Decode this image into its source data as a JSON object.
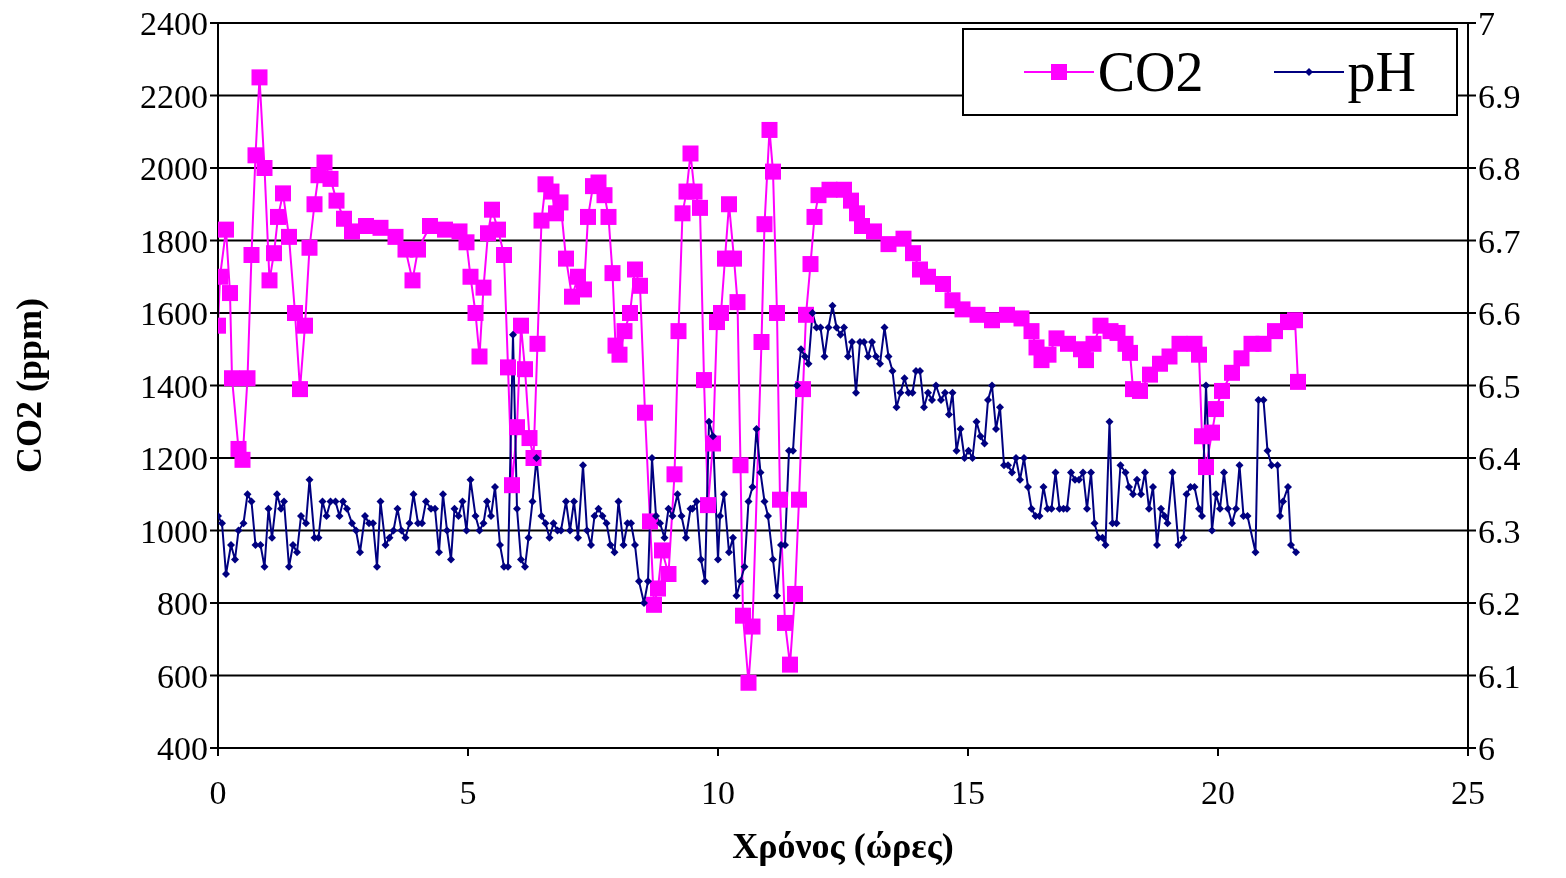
{
  "chart_data": {
    "type": "line",
    "xlabel": "Χρόνος (ώρες)",
    "ylabel": "CO2 (ppm)",
    "xlim": [
      0,
      25
    ],
    "xticks": [
      0,
      5,
      10,
      15,
      20,
      25
    ],
    "ylim": [
      400,
      2400
    ],
    "yticks": [
      400,
      600,
      800,
      1000,
      1200,
      1400,
      1600,
      1800,
      2000,
      2200,
      2400
    ],
    "y2lim": [
      6,
      7
    ],
    "y2ticks": [
      {
        "value": 6,
        "label": "6"
      },
      {
        "value": 6.1,
        "label": "6.1"
      },
      {
        "value": 6.2,
        "label": "6.2"
      },
      {
        "value": 6.3,
        "label": "6.3"
      },
      {
        "value": 6.4,
        "label": "6.4"
      },
      {
        "value": 6.5,
        "label": "6.5"
      },
      {
        "value": 6.6,
        "label": "6.6"
      },
      {
        "value": 6.7,
        "label": "6.7"
      },
      {
        "value": 6.8,
        "label": "6.8"
      },
      {
        "value": 6.9,
        "label": "6.9"
      },
      {
        "value": 7,
        "label": "7"
      }
    ],
    "grid": "y",
    "legend": "top right",
    "line_style": "solid",
    "series": [
      {
        "name": "CO2",
        "color": "#ff00ff",
        "marker": "square",
        "x": [
          0,
          0.04,
          0.16,
          0.24,
          0.28,
          0.41,
          0.49,
          0.59,
          0.67,
          0.75,
          0.83,
          0.93,
          1.03,
          1.12,
          1.2,
          1.3,
          1.42,
          1.54,
          1.64,
          1.74,
          1.83,
          1.93,
          2.01,
          2.13,
          2.25,
          2.37,
          2.52,
          2.68,
          2.96,
          3.25,
          3.55,
          3.75,
          3.89,
          4.0,
          4.24,
          4.54,
          4.83,
          4.97,
          5.05,
          5.15,
          5.23,
          5.31,
          5.4,
          5.48,
          5.6,
          5.72,
          5.8,
          5.88,
          5.98,
          6.06,
          6.14,
          6.23,
          6.31,
          6.39,
          6.47,
          6.55,
          6.67,
          6.76,
          6.85,
          6.96,
          7.08,
          7.2,
          7.32,
          7.4,
          7.5,
          7.61,
          7.73,
          7.81,
          7.89,
          7.95,
          8.03,
          8.13,
          8.24,
          8.34,
          8.44,
          8.54,
          8.64,
          8.72,
          8.8,
          8.88,
          9.01,
          9.13,
          9.21,
          9.29,
          9.37,
          9.45,
          9.53,
          9.64,
          9.72,
          9.8,
          9.9,
          9.98,
          10.06,
          10.14,
          10.22,
          10.32,
          10.39,
          10.45,
          10.5,
          10.61,
          10.69,
          10.87,
          10.93,
          11.03,
          11.1,
          11.18,
          11.24,
          11.34,
          11.44,
          11.54,
          11.62,
          11.7,
          11.76,
          11.85,
          11.93,
          12.01,
          12.23,
          12.52,
          12.66,
          12.78,
          12.88,
          13.12,
          13.41,
          13.71,
          13.9,
          14.04,
          14.2,
          14.5,
          14.69,
          14.89,
          15.19,
          15.48,
          15.78,
          16.07,
          16.27,
          16.37,
          16.47,
          16.61,
          16.77,
          17.0,
          17.26,
          17.36,
          17.51,
          17.65,
          17.85,
          17.99,
          18.15,
          18.24,
          18.3,
          18.44,
          18.64,
          18.84,
          19.03,
          19.23,
          19.53,
          19.62,
          19.68,
          19.76,
          19.88,
          19.96,
          20.08,
          20.28,
          20.47,
          20.67,
          20.91,
          21.14,
          21.4,
          21.54,
          21.6
        ],
        "values": [
          1565,
          1700,
          1830,
          1655,
          1420,
          1225,
          1195,
          1420,
          1760,
          2035,
          2250,
          2000,
          1690,
          1765,
          1865,
          1930,
          1810,
          1600,
          1390,
          1565,
          1780,
          1900,
          1980,
          2015,
          1970,
          1910,
          1860,
          1825,
          1840,
          1835,
          1810,
          1775,
          1690,
          1775,
          1840,
          1830,
          1825,
          1795,
          1700,
          1600,
          1480,
          1670,
          1820,
          1885,
          1830,
          1760,
          1450,
          1125,
          1285,
          1565,
          1445,
          1255,
          1200,
          1515,
          1855,
          1955,
          1935,
          1875,
          1905,
          1750,
          1645,
          1700,
          1665,
          1865,
          1950,
          1960,
          1925,
          1865,
          1710,
          1510,
          1485,
          1550,
          1600,
          1720,
          1675,
          1325,
          1025,
          795,
          840,
          945,
          880,
          1155,
          1550,
          1875,
          1935,
          2040,
          1935,
          1890,
          1415,
          1070,
          1240,
          1575,
          1600,
          1750,
          1900,
          1750,
          1630,
          1180,
          765,
          580,
          735,
          1520,
          1845,
          2105,
          1990,
          1600,
          1085,
          745,
          630,
          825,
          1085,
          1390,
          1595,
          1735,
          1865,
          1925,
          1940,
          1940,
          1910,
          1875,
          1840,
          1825,
          1790,
          1805,
          1765,
          1720,
          1700,
          1680,
          1635,
          1610,
          1595,
          1580,
          1595,
          1585,
          1550,
          1505,
          1470,
          1485,
          1530,
          1515,
          1500,
          1470,
          1515,
          1565,
          1550,
          1545,
          1515,
          1490,
          1390,
          1385,
          1430,
          1460,
          1480,
          1515,
          1515,
          1485,
          1260,
          1175,
          1270,
          1335,
          1385,
          1435,
          1475,
          1515,
          1515,
          1550,
          1575,
          1580,
          1410
        ]
      },
      {
        "name": "pH",
        "color": "#000080",
        "marker": "diamond",
        "axis": "y2",
        "x": [
          0,
          0.08,
          0.16,
          0.26,
          0.34,
          0.41,
          0.51,
          0.59,
          0.67,
          0.75,
          0.85,
          0.93,
          1.01,
          1.08,
          1.18,
          1.26,
          1.32,
          1.42,
          1.5,
          1.58,
          1.66,
          1.76,
          1.83,
          1.93,
          2.01,
          2.09,
          2.17,
          2.25,
          2.35,
          2.43,
          2.5,
          2.58,
          2.68,
          2.76,
          2.84,
          2.94,
          3.02,
          3.1,
          3.18,
          3.25,
          3.35,
          3.43,
          3.51,
          3.59,
          3.67,
          3.75,
          3.83,
          3.91,
          4.0,
          4.08,
          4.16,
          4.26,
          4.34,
          4.42,
          4.5,
          4.58,
          4.66,
          4.73,
          4.81,
          4.89,
          4.97,
          5.05,
          5.15,
          5.23,
          5.31,
          5.38,
          5.46,
          5.54,
          5.64,
          5.72,
          5.8,
          5.9,
          5.98,
          6.06,
          6.14,
          6.21,
          6.29,
          6.37,
          6.47,
          6.55,
          6.63,
          6.71,
          6.79,
          6.86,
          6.96,
          7.04,
          7.12,
          7.2,
          7.3,
          7.38,
          7.46,
          7.53,
          7.61,
          7.69,
          7.77,
          7.85,
          7.93,
          8.01,
          8.11,
          8.19,
          8.26,
          8.34,
          8.42,
          8.52,
          8.6,
          8.68,
          8.76,
          8.84,
          8.93,
          9.01,
          9.09,
          9.19,
          9.27,
          9.36,
          9.45,
          9.49,
          9.57,
          9.66,
          9.74,
          9.82,
          9.9,
          10.0,
          10.04,
          10.12,
          10.22,
          10.3,
          10.37,
          10.45,
          10.53,
          10.61,
          10.69,
          10.77,
          10.85,
          10.93,
          11.0,
          11.1,
          11.18,
          11.26,
          11.34,
          11.42,
          11.5,
          11.58,
          11.66,
          11.74,
          11.81,
          11.89,
          11.97,
          12.05,
          12.13,
          12.21,
          12.29,
          12.37,
          12.45,
          12.52,
          12.6,
          12.68,
          12.76,
          12.84,
          12.92,
          13.0,
          13.08,
          13.16,
          13.24,
          13.33,
          13.41,
          13.49,
          13.57,
          13.65,
          13.73,
          13.81,
          13.89,
          13.96,
          14.04,
          14.12,
          14.2,
          14.28,
          14.36,
          14.46,
          14.54,
          14.62,
          14.69,
          14.77,
          14.85,
          14.93,
          15.01,
          15.09,
          15.17,
          15.25,
          15.33,
          15.4,
          15.48,
          15.56,
          15.64,
          15.72,
          15.8,
          15.88,
          15.96,
          16.04,
          16.12,
          16.2,
          16.27,
          16.35,
          16.43,
          16.51,
          16.59,
          16.67,
          16.75,
          16.83,
          16.91,
          16.98,
          17.06,
          17.14,
          17.22,
          17.3,
          17.38,
          17.46,
          17.53,
          17.61,
          17.69,
          17.75,
          17.83,
          17.89,
          17.97,
          18.05,
          18.15,
          18.22,
          18.3,
          18.38,
          18.46,
          18.54,
          18.62,
          18.7,
          18.78,
          18.86,
          18.93,
          18.99,
          19.09,
          19.21,
          19.31,
          19.37,
          19.45,
          19.53,
          19.62,
          19.68,
          19.76,
          19.88,
          19.96,
          20.04,
          20.12,
          20.2,
          20.28,
          20.36,
          20.43,
          20.51,
          20.59,
          20.75,
          20.81,
          20.91,
          20.99,
          21.07,
          21.19,
          21.24,
          21.3,
          21.4,
          21.46,
          21.56
        ],
        "values": [
          6.32,
          6.31,
          6.24,
          6.28,
          6.26,
          6.3,
          6.31,
          6.35,
          6.34,
          6.28,
          6.28,
          6.25,
          6.33,
          6.29,
          6.35,
          6.33,
          6.34,
          6.25,
          6.28,
          6.27,
          6.32,
          6.31,
          6.37,
          6.29,
          6.29,
          6.34,
          6.32,
          6.34,
          6.34,
          6.32,
          6.34,
          6.33,
          6.31,
          6.3,
          6.27,
          6.32,
          6.31,
          6.31,
          6.25,
          6.34,
          6.28,
          6.29,
          6.3,
          6.33,
          6.3,
          6.29,
          6.31,
          6.35,
          6.31,
          6.31,
          6.34,
          6.33,
          6.33,
          6.27,
          6.35,
          6.3,
          6.26,
          6.33,
          6.32,
          6.34,
          6.3,
          6.37,
          6.32,
          6.3,
          6.31,
          6.34,
          6.32,
          6.36,
          6.28,
          6.25,
          6.25,
          6.57,
          6.33,
          6.26,
          6.25,
          6.29,
          6.34,
          6.4,
          6.32,
          6.31,
          6.29,
          6.31,
          6.3,
          6.3,
          6.34,
          6.3,
          6.34,
          6.29,
          6.39,
          6.3,
          6.28,
          6.32,
          6.33,
          6.32,
          6.31,
          6.28,
          6.27,
          6.34,
          6.28,
          6.31,
          6.31,
          6.28,
          6.23,
          6.2,
          6.23,
          6.4,
          6.32,
          6.31,
          6.29,
          6.33,
          6.32,
          6.35,
          6.32,
          6.29,
          6.33,
          6.33,
          6.34,
          6.26,
          6.23,
          6.45,
          6.43,
          6.26,
          6.32,
          6.35,
          6.27,
          6.29,
          6.21,
          6.23,
          6.25,
          6.34,
          6.36,
          6.44,
          6.38,
          6.34,
          6.32,
          6.26,
          6.21,
          6.28,
          6.28,
          6.41,
          6.41,
          6.5,
          6.55,
          6.54,
          6.53,
          6.6,
          6.58,
          6.58,
          6.54,
          6.58,
          6.61,
          6.58,
          6.57,
          6.58,
          6.54,
          6.56,
          6.49,
          6.56,
          6.56,
          6.54,
          6.56,
          6.54,
          6.53,
          6.58,
          6.54,
          6.52,
          6.47,
          6.49,
          6.51,
          6.49,
          6.49,
          6.52,
          6.52,
          6.47,
          6.49,
          6.48,
          6.5,
          6.48,
          6.49,
          6.46,
          6.49,
          6.41,
          6.44,
          6.4,
          6.41,
          6.4,
          6.45,
          6.43,
          6.42,
          6.48,
          6.5,
          6.44,
          6.47,
          6.39,
          6.39,
          6.38,
          6.4,
          6.37,
          6.4,
          6.36,
          6.33,
          6.32,
          6.32,
          6.36,
          6.33,
          6.33,
          6.38,
          6.33,
          6.33,
          6.33,
          6.38,
          6.37,
          6.37,
          6.38,
          6.33,
          6.38,
          6.31,
          6.29,
          6.29,
          6.28,
          6.45,
          6.31,
          6.31,
          6.39,
          6.38,
          6.36,
          6.35,
          6.37,
          6.35,
          6.38,
          6.33,
          6.36,
          6.28,
          6.33,
          6.32,
          6.31,
          6.38,
          6.28,
          6.29,
          6.35,
          6.36,
          6.36,
          6.33,
          6.32,
          6.5,
          6.3,
          6.35,
          6.33,
          6.38,
          6.33,
          6.31,
          6.33,
          6.39,
          6.32,
          6.32,
          6.27,
          6.48,
          6.48,
          6.41,
          6.39,
          6.39,
          6.32,
          6.34,
          6.36,
          6.28,
          6.27
        ]
      }
    ]
  }
}
